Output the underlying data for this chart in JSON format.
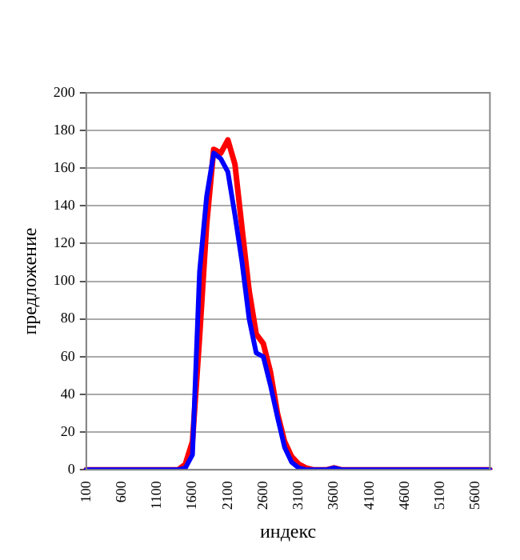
{
  "chart_data": {
    "type": "line",
    "xlabel": "индекс",
    "ylabel": "предложение",
    "categories": [
      "100",
      null,
      null,
      null,
      null,
      "600",
      null,
      null,
      null,
      null,
      "1100",
      null,
      null,
      null,
      null,
      "1600",
      null,
      null,
      null,
      null,
      "2100",
      null,
      null,
      null,
      null,
      "2600",
      null,
      null,
      null,
      null,
      "3100",
      null,
      null,
      null,
      null,
      "3600",
      null,
      null,
      null,
      null,
      "4100",
      null,
      null,
      null,
      null,
      "4600",
      null,
      null,
      null,
      null,
      "5100",
      null,
      null,
      null,
      null,
      "5600",
      null,
      null
    ],
    "series": [
      {
        "color": "#0000ff",
        "values": [
          0,
          0,
          0,
          0,
          0,
          0,
          0,
          0,
          0,
          0,
          0,
          0,
          0,
          0,
          1,
          8,
          105,
          145,
          168,
          165,
          158,
          135,
          110,
          80,
          62,
          60,
          45,
          28,
          12,
          4,
          1,
          0,
          0,
          0,
          0,
          1,
          0,
          0,
          0,
          0,
          0,
          0,
          0,
          0,
          0,
          0,
          0,
          0,
          0,
          0,
          0,
          0,
          0,
          0,
          0,
          0,
          0,
          0
        ]
      },
      {
        "color": "#ff0000",
        "values": [
          0,
          0,
          0,
          0,
          0,
          0,
          0,
          0,
          0,
          0,
          0,
          0,
          0,
          0,
          3,
          15,
          70,
          130,
          170,
          168,
          175,
          162,
          128,
          95,
          72,
          67,
          52,
          30,
          15,
          7,
          3,
          1,
          0,
          0,
          0,
          1,
          0,
          0,
          0,
          0,
          0,
          0,
          0,
          0,
          0,
          0,
          0,
          0,
          0,
          0,
          0,
          0,
          0,
          0,
          0,
          0,
          0,
          0
        ]
      }
    ],
    "ylim": [
      0,
      200
    ],
    "yticks": [
      0,
      20,
      40,
      60,
      80,
      100,
      120,
      140,
      160,
      180,
      200
    ],
    "grid": "y",
    "marker": "none",
    "line_style": "solid"
  }
}
